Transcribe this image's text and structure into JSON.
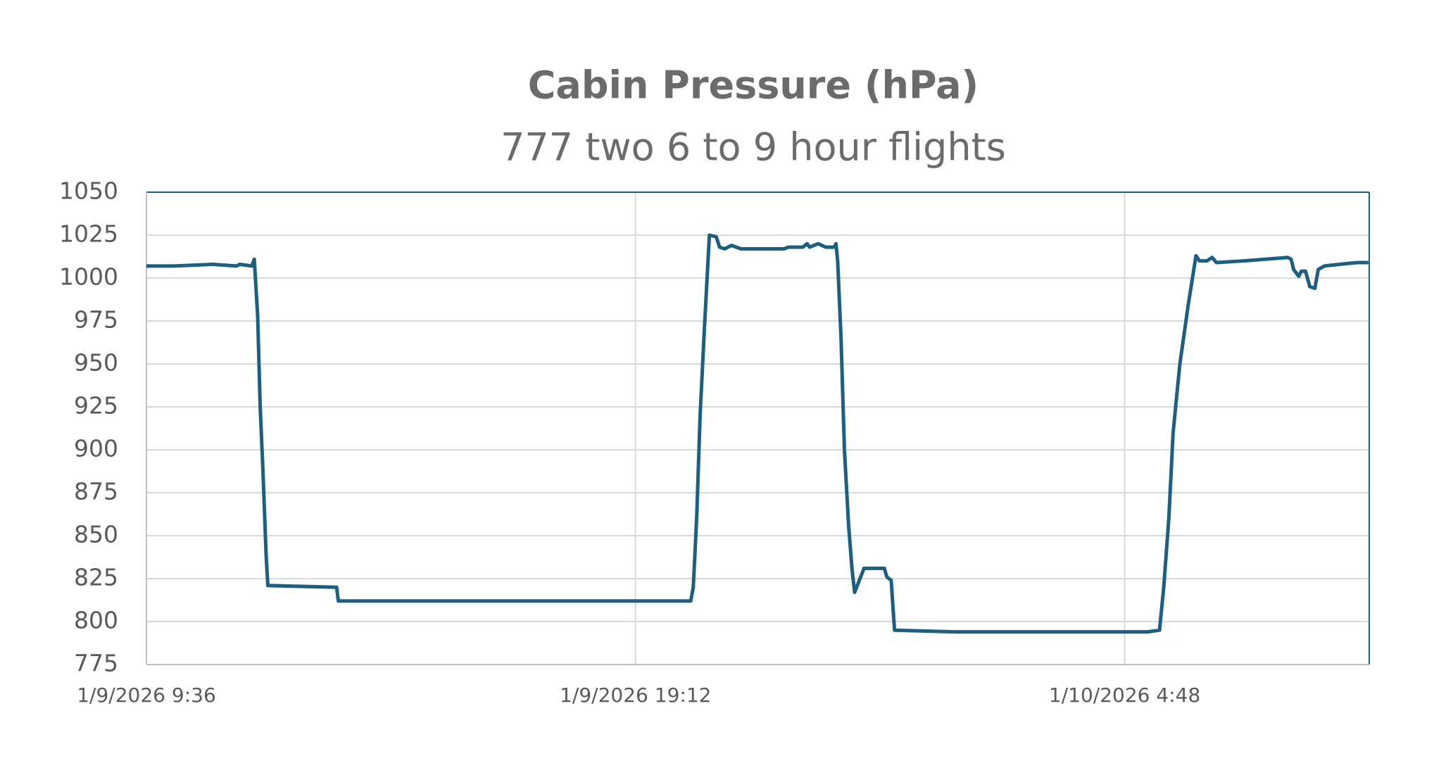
{
  "chart_data": {
    "type": "line",
    "title": "Cabin Pressure (hPa)",
    "subtitle": "777 two 6 to 9 hour flights",
    "color": "#1d5f80",
    "grid": true,
    "ylim": [
      775,
      1050
    ],
    "yticks": [
      775,
      800,
      825,
      850,
      875,
      900,
      925,
      950,
      975,
      1000,
      1025,
      1050
    ],
    "xlim": [
      "2026-01-09T09:36",
      "2026-01-10T09:36"
    ],
    "xticks": [
      {
        "value": "2026-01-09T09:36",
        "label": "1/9/2026 9:36"
      },
      {
        "value": "2026-01-09T19:12",
        "label": "1/9/2026 19:12"
      },
      {
        "value": "2026-01-10T04:48",
        "label": "1/10/2026 4:48"
      }
    ],
    "x": [
      "2026-01-09T09:36",
      "2026-01-09T10:08",
      "2026-01-09T10:54",
      "2026-01-09T11:22",
      "2026-01-09T11:26",
      "2026-01-09T11:40",
      "2026-01-09T11:43",
      "2026-01-09T11:47",
      "2026-01-09T11:50",
      "2026-01-09T11:53",
      "2026-01-09T11:57",
      "2026-01-09T11:59",
      "2026-01-09T13:20",
      "2026-01-09T13:22",
      "2026-01-09T18:02",
      "2026-01-09T19:17",
      "2026-01-09T20:17",
      "2026-01-09T20:20",
      "2026-01-09T20:24",
      "2026-01-09T20:28",
      "2026-01-09T20:33",
      "2026-01-09T20:39",
      "2026-01-09T20:47",
      "2026-01-09T20:51",
      "2026-01-09T20:57",
      "2026-01-09T21:05",
      "2026-01-09T21:16",
      "2026-01-09T22:07",
      "2026-01-09T22:12",
      "2026-01-09T22:29",
      "2026-01-09T22:34",
      "2026-01-09T22:37",
      "2026-01-09T22:47",
      "2026-01-09T22:56",
      "2026-01-09T23:06",
      "2026-01-09T23:08",
      "2026-01-09T23:10",
      "2026-01-09T23:14",
      "2026-01-09T23:18",
      "2026-01-09T23:23",
      "2026-01-09T23:27",
      "2026-01-09T23:30",
      "2026-01-09T23:34",
      "2026-01-09T23:41",
      "2026-01-10T00:05",
      "2026-01-10T00:08",
      "2026-01-10T00:13",
      "2026-01-10T00:17",
      "2026-01-10T01:29",
      "2026-01-10T03:33",
      "2026-01-10T04:10",
      "2026-01-10T05:15",
      "2026-01-10T05:29",
      "2026-01-10T05:34",
      "2026-01-10T05:40",
      "2026-01-10T05:45",
      "2026-01-10T05:53",
      "2026-01-10T06:03",
      "2026-01-10T06:12",
      "2026-01-10T06:16",
      "2026-01-10T06:25",
      "2026-01-10T06:31",
      "2026-01-10T06:36",
      "2026-01-10T07:08",
      "2026-01-10T08:00",
      "2026-01-10T08:04",
      "2026-01-10T08:07",
      "2026-01-10T08:13",
      "2026-01-10T08:16",
      "2026-01-10T08:21",
      "2026-01-10T08:26",
      "2026-01-10T08:32",
      "2026-01-10T08:36",
      "2026-01-10T08:43",
      "2026-01-10T09:01",
      "2026-01-10T09:22",
      "2026-01-10T09:35"
    ],
    "values": [
      1007,
      1007,
      1008,
      1007,
      1008,
      1007,
      1011,
      978,
      925,
      890,
      838,
      821,
      820,
      812,
      812,
      812,
      812,
      820,
      860,
      920,
      970,
      1025,
      1024,
      1018,
      1017,
      1019,
      1017,
      1017,
      1018,
      1018,
      1020,
      1018,
      1020,
      1018,
      1018,
      1020,
      1010,
      965,
      900,
      855,
      830,
      817,
      822,
      831,
      831,
      826,
      824,
      795,
      794,
      794,
      794,
      794,
      795,
      820,
      860,
      910,
      950,
      985,
      1013,
      1010,
      1010,
      1012,
      1009,
      1010,
      1012,
      1011,
      1005,
      1001,
      1004,
      1004,
      995,
      994,
      1005,
      1007,
      1008,
      1009,
      1009
    ]
  }
}
